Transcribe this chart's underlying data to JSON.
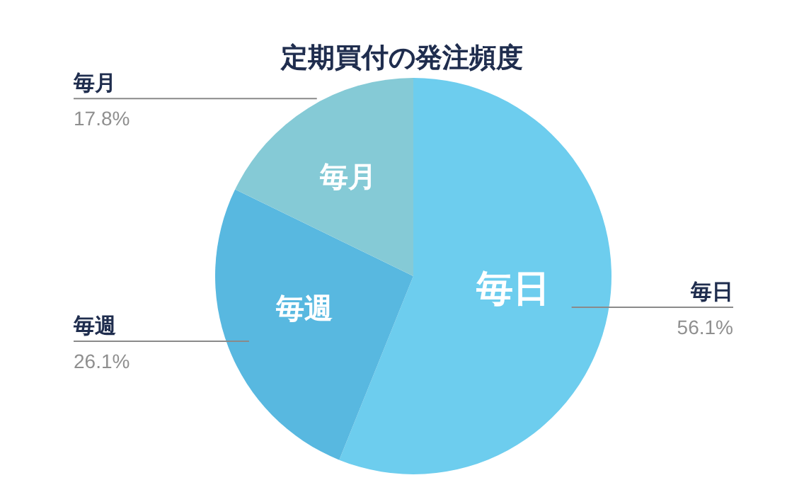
{
  "chart_data": {
    "type": "pie",
    "title": "定期買付の発注頻度",
    "categories": [
      "毎日",
      "毎週",
      "毎月"
    ],
    "values": [
      56.1,
      26.1,
      17.8
    ],
    "colors": [
      "#6dcdee",
      "#58b8e0",
      "#85cad6"
    ],
    "value_labels": [
      "56.1%",
      "26.1%",
      "17.8%"
    ]
  }
}
